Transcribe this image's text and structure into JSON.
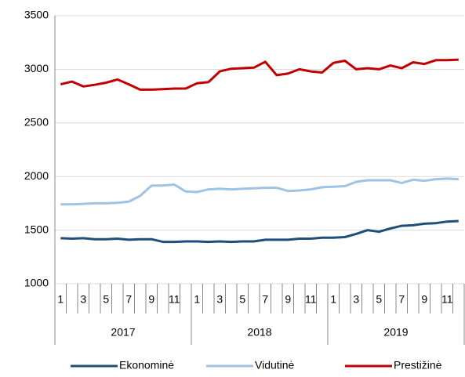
{
  "chart_data": {
    "type": "line",
    "categories": [
      "1",
      null,
      "3",
      null,
      "5",
      null,
      "7",
      null,
      "9",
      null,
      "11",
      null,
      "1",
      null,
      "3",
      null,
      "5",
      null,
      "7",
      null,
      "9",
      null,
      "11",
      null,
      "1",
      null,
      "3",
      null,
      "5",
      null,
      "7",
      null,
      "9",
      null,
      "11",
      null
    ],
    "year_groups": [
      "2017",
      "2018",
      "2019"
    ],
    "series": [
      {
        "name": "Ekonominė",
        "color": "#1f4e79",
        "values": [
          1425,
          1420,
          1425,
          1415,
          1415,
          1420,
          1410,
          1415,
          1415,
          1390,
          1390,
          1395,
          1395,
          1390,
          1395,
          1390,
          1395,
          1395,
          1410,
          1410,
          1410,
          1420,
          1420,
          1430,
          1430,
          1435,
          1465,
          1500,
          1485,
          1515,
          1540,
          1545,
          1560,
          1565,
          1580,
          1585
        ]
      },
      {
        "name": "Vidutinė",
        "color": "#9dc3e6",
        "values": [
          1740,
          1740,
          1745,
          1750,
          1750,
          1755,
          1765,
          1820,
          1915,
          1915,
          1925,
          1860,
          1855,
          1880,
          1885,
          1880,
          1885,
          1890,
          1895,
          1895,
          1865,
          1870,
          1880,
          1900,
          1905,
          1910,
          1950,
          1965,
          1965,
          1965,
          1940,
          1970,
          1960,
          1975,
          1980,
          1975
        ]
      },
      {
        "name": "Prestižinė",
        "color": "#c00000",
        "values": [
          2860,
          2885,
          2840,
          2855,
          2875,
          2905,
          2860,
          2810,
          2810,
          2815,
          2820,
          2820,
          2870,
          2880,
          2980,
          3005,
          3010,
          3015,
          3070,
          2945,
          2960,
          3000,
          2980,
          2970,
          3060,
          3080,
          3000,
          3010,
          3000,
          3035,
          3010,
          3065,
          3050,
          3085,
          3085,
          3090
        ]
      }
    ],
    "ylim": [
      1000,
      3500
    ],
    "yticks": [
      1000,
      1500,
      2000,
      2500,
      3000,
      3500
    ],
    "grid": true,
    "legend": "bottom"
  }
}
